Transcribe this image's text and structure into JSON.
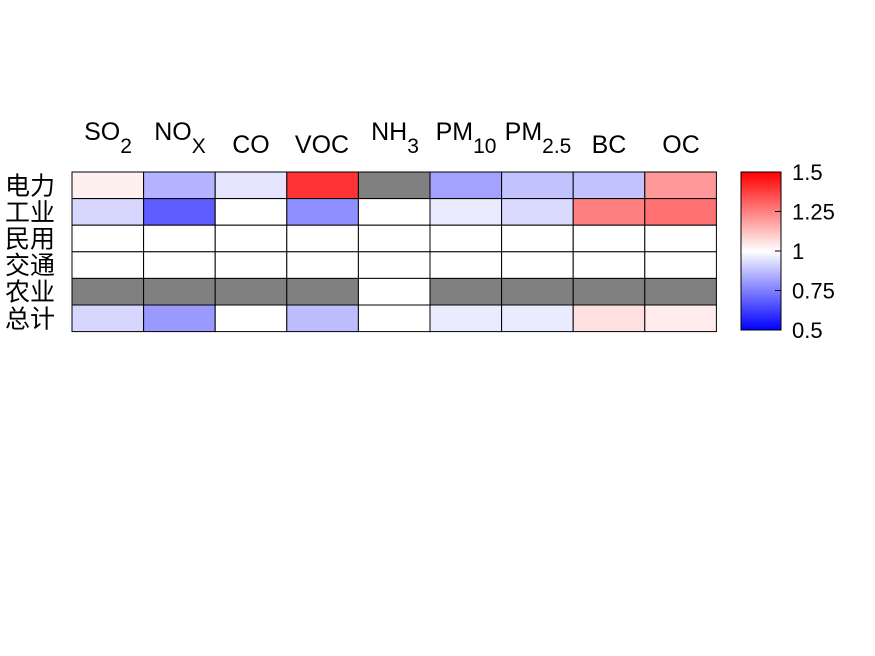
{
  "chart_data": {
    "type": "heatmap",
    "columns": [
      {
        "base": "SO",
        "sub": "2"
      },
      {
        "base": "NO",
        "sub": "X"
      },
      {
        "base": "CO",
        "sub": ""
      },
      {
        "base": "VOC",
        "sub": ""
      },
      {
        "base": "NH",
        "sub": "3"
      },
      {
        "base": "PM",
        "sub": "10"
      },
      {
        "base": "PM",
        "sub": "2.5"
      },
      {
        "base": "BC",
        "sub": ""
      },
      {
        "base": "OC",
        "sub": ""
      }
    ],
    "rows": [
      "电力",
      "工业",
      "民用",
      "交通",
      "农业",
      "总计"
    ],
    "values": [
      [
        1.03,
        0.85,
        0.95,
        1.4,
        null,
        0.82,
        0.88,
        0.88,
        1.2
      ],
      [
        0.92,
        0.68,
        1.0,
        0.78,
        1.0,
        0.96,
        0.93,
        1.25,
        1.28
      ],
      [
        1.0,
        1.0,
        1.0,
        1.0,
        1.0,
        1.0,
        1.0,
        1.0,
        1.0
      ],
      [
        1.0,
        1.0,
        1.0,
        1.0,
        1.0,
        1.0,
        1.0,
        1.0,
        1.0
      ],
      [
        null,
        null,
        null,
        null,
        1.0,
        null,
        null,
        null,
        null
      ],
      [
        0.92,
        0.8,
        1.0,
        0.87,
        1.0,
        0.96,
        0.96,
        1.06,
        1.04
      ]
    ],
    "missing_color": "#808080",
    "colorbar": {
      "min": 0.5,
      "max": 1.5,
      "ticks": [
        1.5,
        1.25,
        1,
        0.75,
        0.5
      ],
      "tick_labels": [
        "1.5",
        "1.25",
        "1",
        "0.75",
        "0.5"
      ],
      "low_color": "#0000ff",
      "mid_color": "#ffffff",
      "high_color": "#ff0000"
    }
  }
}
